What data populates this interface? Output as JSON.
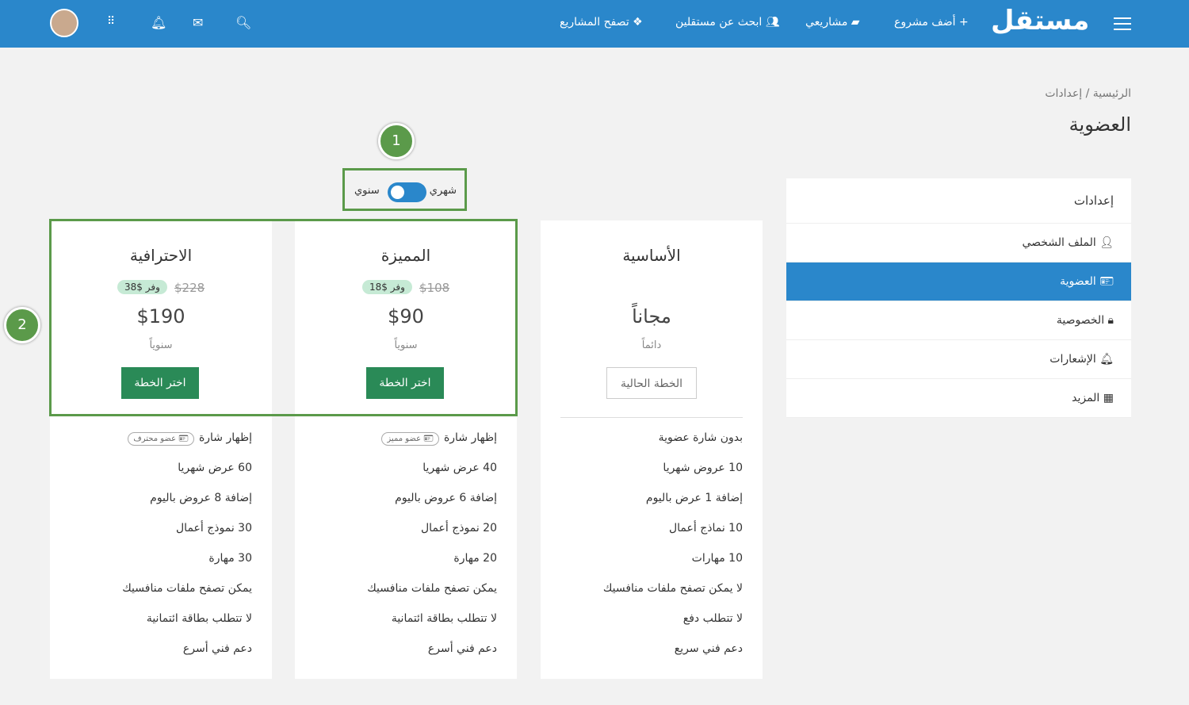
{
  "header": {
    "logo": "مستقل",
    "nav": [
      {
        "label": "أضف مشروع",
        "icon": "plus-icon"
      },
      {
        "label": "مشاريعي",
        "icon": "folder-icon"
      },
      {
        "label": "ابحث عن مستقلين",
        "icon": "users-icon"
      },
      {
        "label": "تصفح المشاريع",
        "icon": "cubes-icon"
      }
    ],
    "icons": [
      "search-icon",
      "envelope-icon",
      "bell-icon",
      "apps-grid-icon",
      "avatar"
    ]
  },
  "breadcrumb": {
    "home": "الرئيسية",
    "sep": "/",
    "current": "إعدادات"
  },
  "page_title": "العضوية",
  "sidebar": {
    "header": "إعدادات",
    "items": [
      {
        "label": "الملف الشخصي",
        "icon": "user-icon"
      },
      {
        "label": "العضوية",
        "icon": "id-card-icon",
        "active": true
      },
      {
        "label": "الخصوصية",
        "icon": "lock-icon"
      },
      {
        "label": "الإشعارات",
        "icon": "bell-icon"
      },
      {
        "label": "المزيد",
        "icon": "grid-icon"
      }
    ]
  },
  "billing_toggle": {
    "monthly": "شهري",
    "yearly": "سنوي",
    "state": "yearly"
  },
  "callouts": [
    "1",
    "2"
  ],
  "plans": [
    {
      "name": "الاحترافية",
      "old_price": "$228",
      "save": "وفر $38",
      "price": "$190",
      "period": "سنوياً",
      "button": "اختر الخطة",
      "badge": "عضو محترف",
      "features": [
        "إظهار شارة",
        "60 عرض شهريا",
        "إضافة 8 عروض باليوم",
        "30 نموذج أعمال",
        "30 مهارة",
        "يمكن تصفح ملفات منافسيك",
        "لا تتطلب بطاقة ائتمانية",
        "دعم فني أسرع"
      ]
    },
    {
      "name": "المميزة",
      "old_price": "$108",
      "save": "وفر $18",
      "price": "$90",
      "period": "سنوياً",
      "button": "اختر الخطة",
      "badge": "عضو مميز",
      "features": [
        "إظهار شارة",
        "40 عرض شهريا",
        "إضافة 6 عروض باليوم",
        "20 نموذج أعمال",
        "20 مهارة",
        "يمكن تصفح ملفات منافسيك",
        "لا تتطلب بطاقة ائتمانية",
        "دعم فني أسرع"
      ]
    },
    {
      "name": "الأساسية",
      "price": "مجاناً",
      "period": "دائماً",
      "button": "الخطة الحالية",
      "features": [
        "بدون شارة عضوية",
        "10 عروض شهريا",
        "إضافة 1 عرض باليوم",
        "10 نماذج أعمال",
        "10 مهارات",
        "لا يمكن تصفح ملفات منافسيك",
        "لا تتطلب دفع",
        "دعم فني سريع"
      ]
    }
  ],
  "colors": {
    "header": "#2a87cb",
    "button": "#2a8a57",
    "highlight": "#5b9a4a"
  }
}
